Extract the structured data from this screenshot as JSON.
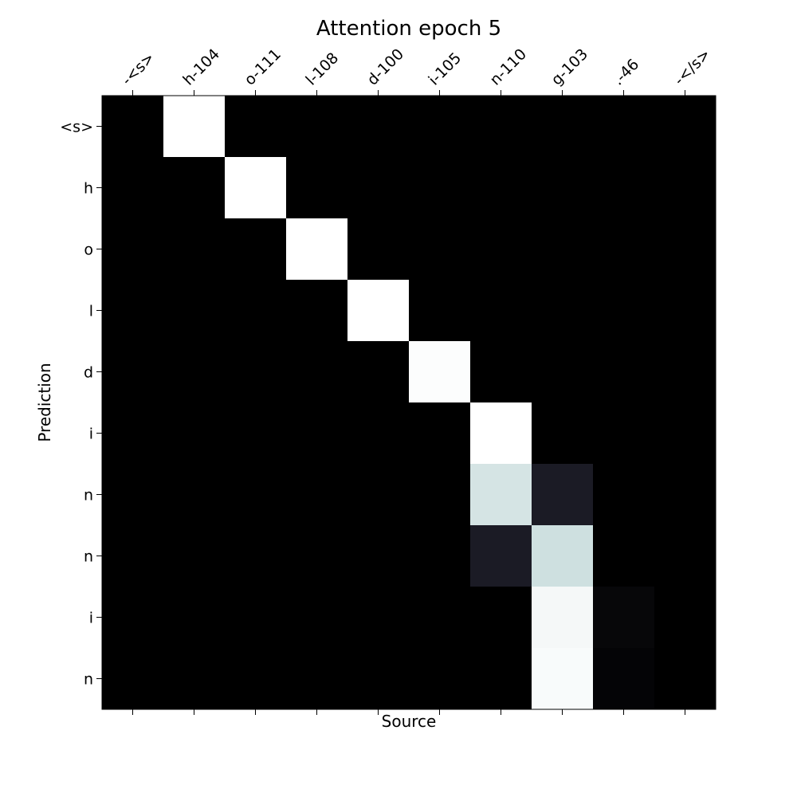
{
  "chart_data": {
    "type": "heatmap",
    "title": "Attention epoch 5",
    "xlabel": "Source",
    "ylabel": "Prediction",
    "x_categories": [
      "-<s>",
      "h-104",
      "o-111",
      "l-108",
      "d-100",
      "i-105",
      "n-110",
      "g-103",
      ".-46",
      "-</s>"
    ],
    "y_categories": [
      "<s>",
      "h",
      "o",
      "l",
      "d",
      "i",
      "n",
      "n",
      "i",
      "n"
    ],
    "values": [
      [
        0,
        1,
        0,
        0,
        0,
        0,
        0,
        0,
        0,
        0
      ],
      [
        0,
        0,
        1,
        0,
        0,
        0,
        0,
        0,
        0,
        0
      ],
      [
        0,
        0,
        0,
        1,
        0,
        0,
        0,
        0,
        0,
        0
      ],
      [
        0,
        0,
        0,
        0,
        1,
        0,
        0,
        0,
        0,
        0
      ],
      [
        0,
        0,
        0,
        0,
        0,
        0.99,
        0,
        0,
        0,
        0
      ],
      [
        0,
        0,
        0,
        0,
        0,
        0,
        1,
        0,
        0,
        0
      ],
      [
        0,
        0,
        0,
        0,
        0,
        0,
        0.88,
        0.12,
        0,
        0
      ],
      [
        0,
        0,
        0,
        0,
        0,
        0,
        0.12,
        0.86,
        0,
        0
      ],
      [
        0,
        0,
        0,
        0,
        0,
        0,
        0,
        0.97,
        0.03,
        0
      ],
      [
        0,
        0,
        0,
        0,
        0,
        0,
        0,
        0.98,
        0.02,
        0
      ]
    ],
    "value_range": [
      0,
      1
    ],
    "colormap": "bone",
    "x_tick_position": "top",
    "grid": false,
    "colors": {
      "low": "#000000",
      "high": "#ffffff"
    }
  }
}
